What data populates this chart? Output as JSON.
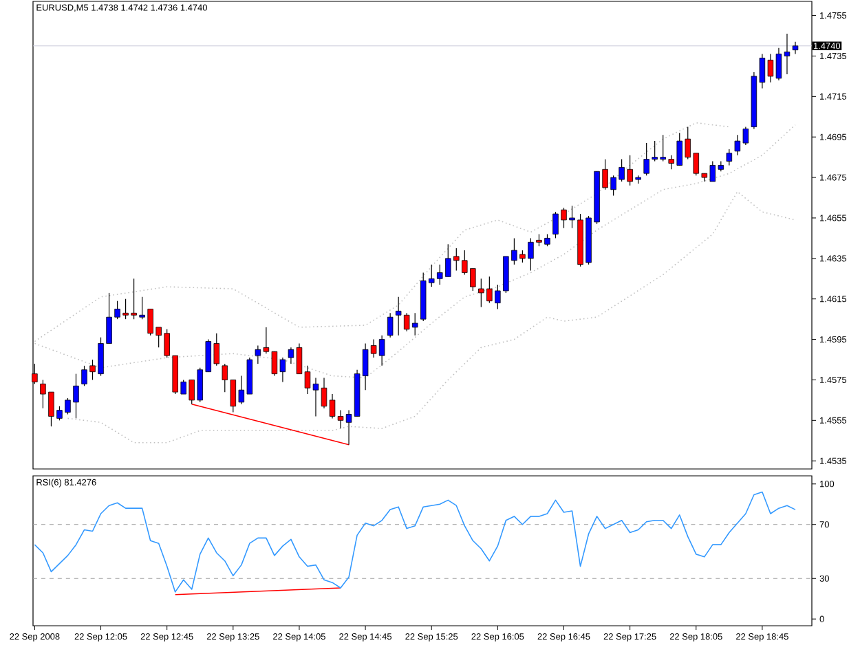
{
  "chart_data": [
    {
      "type": "candlestick",
      "title": "EURUSD,M5  1.4738 1.4742 1.4736 1.4740",
      "x": [
        "2008-09-22T11:25",
        "2008-09-22T11:30",
        "2008-09-22T11:35",
        "2008-09-22T11:40",
        "2008-09-22T11:45",
        "2008-09-22T11:50",
        "2008-09-22T11:55",
        "2008-09-22T12:00",
        "2008-09-22T12:05",
        "2008-09-22T12:10",
        "2008-09-22T12:15",
        "2008-09-22T12:20",
        "2008-09-22T12:25",
        "2008-09-22T12:30",
        "2008-09-22T12:35",
        "2008-09-22T12:40",
        "2008-09-22T12:45",
        "2008-09-22T12:50",
        "2008-09-22T12:55",
        "2008-09-22T13:00",
        "2008-09-22T13:05",
        "2008-09-22T13:10",
        "2008-09-22T13:15",
        "2008-09-22T13:20",
        "2008-09-22T13:25",
        "2008-09-22T13:30",
        "2008-09-22T13:35",
        "2008-09-22T13:40",
        "2008-09-22T13:45",
        "2008-09-22T13:50",
        "2008-09-22T13:55",
        "2008-09-22T14:00",
        "2008-09-22T14:05",
        "2008-09-22T14:10",
        "2008-09-22T14:15",
        "2008-09-22T14:20",
        "2008-09-22T14:25",
        "2008-09-22T14:30",
        "2008-09-22T14:35",
        "2008-09-22T14:40",
        "2008-09-22T14:45",
        "2008-09-22T14:50",
        "2008-09-22T14:55",
        "2008-09-22T15:00",
        "2008-09-22T15:05",
        "2008-09-22T15:10",
        "2008-09-22T15:15",
        "2008-09-22T15:20",
        "2008-09-22T15:25",
        "2008-09-22T15:30",
        "2008-09-22T15:35",
        "2008-09-22T15:40",
        "2008-09-22T15:45",
        "2008-09-22T15:50",
        "2008-09-22T15:55",
        "2008-09-22T16:00",
        "2008-09-22T16:05",
        "2008-09-22T16:10",
        "2008-09-22T16:15",
        "2008-09-22T16:20",
        "2008-09-22T16:25",
        "2008-09-22T16:30",
        "2008-09-22T16:35",
        "2008-09-22T16:40",
        "2008-09-22T16:45",
        "2008-09-22T16:50",
        "2008-09-22T16:55",
        "2008-09-22T17:00",
        "2008-09-22T17:05",
        "2008-09-22T17:10",
        "2008-09-22T17:15",
        "2008-09-22T17:20",
        "2008-09-22T17:25",
        "2008-09-22T17:30",
        "2008-09-22T17:35",
        "2008-09-22T17:40",
        "2008-09-22T17:45",
        "2008-09-22T17:50",
        "2008-09-22T17:55",
        "2008-09-22T18:00",
        "2008-09-22T18:05",
        "2008-09-22T18:10",
        "2008-09-22T18:15",
        "2008-09-22T18:20",
        "2008-09-22T18:25",
        "2008-09-22T18:30",
        "2008-09-22T18:35",
        "2008-09-22T18:40",
        "2008-09-22T18:45",
        "2008-09-22T18:50",
        "2008-09-22T18:55",
        "2008-09-22T19:00",
        "2008-09-22T19:05"
      ],
      "ohlc": [
        [
          1.4578,
          1.4583,
          1.4573,
          1.4574
        ],
        [
          1.4573,
          1.4575,
          1.4561,
          1.4568
        ],
        [
          1.4569,
          1.4569,
          1.4552,
          1.4557
        ],
        [
          1.4556,
          1.4562,
          1.4555,
          1.456
        ],
        [
          1.4559,
          1.4566,
          1.4558,
          1.4565
        ],
        [
          1.4564,
          1.4578,
          1.4556,
          1.4572
        ],
        [
          1.4573,
          1.4582,
          1.4572,
          1.458
        ],
        [
          1.4582,
          1.4585,
          1.4575,
          1.4579
        ],
        [
          1.4578,
          1.4596,
          1.4577,
          1.4593
        ],
        [
          1.4593,
          1.4618,
          1.4593,
          1.4606
        ],
        [
          1.4606,
          1.4614,
          1.4605,
          1.461
        ],
        [
          1.4608,
          1.4615,
          1.4605,
          1.4607
        ],
        [
          1.4608,
          1.4625,
          1.4605,
          1.4607
        ],
        [
          1.4606,
          1.4616,
          1.4605,
          1.4607
        ],
        [
          1.461,
          1.461,
          1.4597,
          1.4598
        ],
        [
          1.4601,
          1.4601,
          1.4591,
          1.4597
        ],
        [
          1.4598,
          1.46,
          1.4586,
          1.4587
        ],
        [
          1.4587,
          1.4587,
          1.4568,
          1.4569
        ],
        [
          1.4568,
          1.4575,
          1.4568,
          1.4574
        ],
        [
          1.4575,
          1.4575,
          1.4563,
          1.4565
        ],
        [
          1.4565,
          1.4581,
          1.4564,
          1.458
        ],
        [
          1.4579,
          1.4595,
          1.4579,
          1.4594
        ],
        [
          1.4593,
          1.4598,
          1.4582,
          1.4583
        ],
        [
          1.4582,
          1.4583,
          1.4569,
          1.4575
        ],
        [
          1.4575,
          1.4575,
          1.4559,
          1.4562
        ],
        [
          1.4564,
          1.4577,
          1.4563,
          1.457
        ],
        [
          1.4568,
          1.4586,
          1.4568,
          1.4585
        ],
        [
          1.4587,
          1.4592,
          1.4583,
          1.459
        ],
        [
          1.4591,
          1.4601,
          1.4588,
          1.4589
        ],
        [
          1.4589,
          1.4589,
          1.4577,
          1.4578
        ],
        [
          1.4579,
          1.4586,
          1.4574,
          1.4585
        ],
        [
          1.4586,
          1.4591,
          1.4583,
          1.459
        ],
        [
          1.4591,
          1.4593,
          1.4578,
          1.4578
        ],
        [
          1.4579,
          1.4582,
          1.4568,
          1.4571
        ],
        [
          1.457,
          1.4576,
          1.4557,
          1.4573
        ],
        [
          1.4571,
          1.4576,
          1.4561,
          1.4562
        ],
        [
          1.4565,
          1.4568,
          1.4556,
          1.4557
        ],
        [
          1.4557,
          1.456,
          1.4551,
          1.4555
        ],
        [
          1.4554,
          1.456,
          1.4543,
          1.4558
        ],
        [
          1.4557,
          1.458,
          1.4557,
          1.4578
        ],
        [
          1.4577,
          1.4593,
          1.457,
          1.459
        ],
        [
          1.4592,
          1.4595,
          1.4586,
          1.4588
        ],
        [
          1.4587,
          1.4597,
          1.4582,
          1.4595
        ],
        [
          1.4597,
          1.4608,
          1.4596,
          1.4606
        ],
        [
          1.4607,
          1.4616,
          1.4597,
          1.4609
        ],
        [
          1.4607,
          1.4608,
          1.4599,
          1.46
        ],
        [
          1.4601,
          1.4608,
          1.4597,
          1.4603
        ],
        [
          1.4605,
          1.4628,
          1.4604,
          1.4624
        ],
        [
          1.4623,
          1.4632,
          1.4621,
          1.4625
        ],
        [
          1.4625,
          1.4632,
          1.4622,
          1.4628
        ],
        [
          1.4626,
          1.4642,
          1.4626,
          1.4635
        ],
        [
          1.4636,
          1.464,
          1.4629,
          1.4634
        ],
        [
          1.4634,
          1.4639,
          1.4627,
          1.4628
        ],
        [
          1.463,
          1.463,
          1.4619,
          1.4621
        ],
        [
          1.462,
          1.4625,
          1.4611,
          1.4618
        ],
        [
          1.462,
          1.4626,
          1.4613,
          1.4614
        ],
        [
          1.4613,
          1.4622,
          1.461,
          1.4619
        ],
        [
          1.4619,
          1.4636,
          1.4618,
          1.4636
        ],
        [
          1.4634,
          1.4645,
          1.4632,
          1.4639
        ],
        [
          1.4637,
          1.4639,
          1.4633,
          1.4635
        ],
        [
          1.4635,
          1.4645,
          1.4629,
          1.4643
        ],
        [
          1.4644,
          1.4647,
          1.4641,
          1.4643
        ],
        [
          1.4642,
          1.4647,
          1.4641,
          1.4645
        ],
        [
          1.4647,
          1.4658,
          1.4645,
          1.4657
        ],
        [
          1.4659,
          1.466,
          1.465,
          1.4654
        ],
        [
          1.4654,
          1.4661,
          1.465,
          1.4655
        ],
        [
          1.4654,
          1.4657,
          1.4631,
          1.4632
        ],
        [
          1.4633,
          1.4656,
          1.4632,
          1.4655
        ],
        [
          1.4653,
          1.4678,
          1.4652,
          1.4678
        ],
        [
          1.4679,
          1.4684,
          1.4669,
          1.467
        ],
        [
          1.4669,
          1.4676,
          1.4666,
          1.4675
        ],
        [
          1.4674,
          1.4684,
          1.4673,
          1.468
        ],
        [
          1.4679,
          1.4686,
          1.4671,
          1.4673
        ],
        [
          1.4674,
          1.4676,
          1.4672,
          1.4675
        ],
        [
          1.4677,
          1.4692,
          1.4676,
          1.4684
        ],
        [
          1.4684,
          1.4693,
          1.4683,
          1.4685
        ],
        [
          1.4684,
          1.4696,
          1.4683,
          1.4685
        ],
        [
          1.4684,
          1.4686,
          1.4679,
          1.4682
        ],
        [
          1.4681,
          1.4697,
          1.4681,
          1.4693
        ],
        [
          1.4694,
          1.47,
          1.4684,
          1.4685
        ],
        [
          1.4687,
          1.4687,
          1.4676,
          1.4677
        ],
        [
          1.4677,
          1.4677,
          1.4673,
          1.4675
        ],
        [
          1.4673,
          1.4683,
          1.4673,
          1.4681
        ],
        [
          1.4679,
          1.4683,
          1.4678,
          1.4681
        ],
        [
          1.4683,
          1.4689,
          1.4681,
          1.4687
        ],
        [
          1.4688,
          1.4696,
          1.4686,
          1.4693
        ],
        [
          1.4692,
          1.47,
          1.4691,
          1.4699
        ],
        [
          1.47,
          1.4727,
          1.4699,
          1.4725
        ],
        [
          1.4722,
          1.4736,
          1.4719,
          1.4734
        ],
        [
          1.4733,
          1.4736,
          1.4722,
          1.4725
        ],
        [
          1.4724,
          1.4739,
          1.4723,
          1.4736
        ],
        [
          1.4735,
          1.4746,
          1.4726,
          1.4737
        ],
        [
          1.4738,
          1.4742,
          1.4736,
          1.474
        ]
      ],
      "colors": [
        "#ff0000",
        "#ff0000",
        "#ff0000",
        "#0000ff",
        "#0000ff",
        "#0000ff",
        "#0000ff",
        "#ff0000",
        "#0000ff",
        "#0000ff",
        "#0000ff",
        "#ff0000",
        "#ff0000",
        "#0000ff",
        "#ff0000",
        "#ff0000",
        "#ff0000",
        "#ff0000",
        "#0000ff",
        "#ff0000",
        "#0000ff",
        "#0000ff",
        "#ff0000",
        "#ff0000",
        "#ff0000",
        "#0000ff",
        "#0000ff",
        "#0000ff",
        "#ff0000",
        "#ff0000",
        "#0000ff",
        "#0000ff",
        "#ff0000",
        "#ff0000",
        "#0000ff",
        "#ff0000",
        "#ff0000",
        "#ff0000",
        "#0000ff",
        "#0000ff",
        "#0000ff",
        "#ff0000",
        "#0000ff",
        "#0000ff",
        "#0000ff",
        "#ff0000",
        "#0000ff",
        "#0000ff",
        "#0000ff",
        "#0000ff",
        "#0000ff",
        "#ff0000",
        "#ff0000",
        "#ff0000",
        "#ff0000",
        "#ff0000",
        "#0000ff",
        "#0000ff",
        "#0000ff",
        "#ff0000",
        "#0000ff",
        "#ff0000",
        "#0000ff",
        "#0000ff",
        "#ff0000",
        "#0000ff",
        "#ff0000",
        "#0000ff",
        "#0000ff",
        "#ff0000",
        "#0000ff",
        "#0000ff",
        "#ff0000",
        "#0000ff",
        "#0000ff",
        "#0000ff",
        "#0000ff",
        "#ff0000",
        "#0000ff",
        "#ff0000",
        "#ff0000",
        "#ff0000",
        "#0000ff",
        "#0000ff",
        "#0000ff",
        "#0000ff",
        "#0000ff",
        "#0000ff",
        "#0000ff",
        "#ff0000",
        "#0000ff",
        "#0000ff",
        "#0000ff"
      ],
      "series": [
        {
          "type": "line",
          "color": "#c0c0c0",
          "line_style": "dotted",
          "x": [
            "2008-09-22T11:25",
            "2008-09-22T12:05",
            "2008-09-22T12:45",
            "2008-09-22T13:25",
            "2008-09-22T14:05",
            "2008-09-22T14:45",
            "2008-09-22T15:05",
            "2008-09-22T15:25",
            "2008-09-22T15:45",
            "2008-09-22T16:05",
            "2008-09-22T16:25",
            "2008-09-22T16:45",
            "2008-09-22T17:05",
            "2008-09-22T17:25",
            "2008-09-22T17:45",
            "2008-09-22T18:05",
            "2008-09-22T18:25"
          ],
          "values": [
            1.4594,
            1.4616,
            1.4621,
            1.462,
            1.4601,
            1.4602,
            1.4612,
            1.4631,
            1.4649,
            1.4654,
            1.4648,
            1.4657,
            1.4667,
            1.4681,
            1.4694,
            1.4702,
            1.47
          ]
        },
        {
          "type": "line",
          "color": "#c0c0c0",
          "line_style": "dotted",
          "x": [
            "2008-09-22T11:25",
            "2008-09-22T12:05",
            "2008-09-22T12:45",
            "2008-09-22T13:25",
            "2008-09-22T13:55",
            "2008-09-22T14:25",
            "2008-09-22T14:45",
            "2008-09-22T15:05",
            "2008-09-22T15:25",
            "2008-09-22T15:45",
            "2008-09-22T16:05",
            "2008-09-22T16:25",
            "2008-09-22T16:45",
            "2008-09-22T17:05",
            "2008-09-22T17:25",
            "2008-09-22T17:45",
            "2008-09-22T18:05",
            "2008-09-22T18:25",
            "2008-09-22T18:45",
            "2008-09-22T19:05"
          ],
          "values": [
            1.4593,
            1.4581,
            1.4586,
            1.4588,
            1.4585,
            1.4577,
            1.4576,
            1.4589,
            1.4603,
            1.4616,
            1.4621,
            1.4628,
            1.4637,
            1.4649,
            1.4659,
            1.4669,
            1.4672,
            1.4677,
            1.4686,
            1.4701
          ]
        },
        {
          "type": "line",
          "color": "#c0c0c0",
          "line_style": "dotted",
          "x": [
            "2008-09-22T11:45",
            "2008-09-22T12:05",
            "2008-09-22T12:25",
            "2008-09-22T12:45",
            "2008-09-22T13:05",
            "2008-09-22T13:45",
            "2008-09-22T14:25",
            "2008-09-22T14:35",
            "2008-09-22T14:55",
            "2008-09-22T15:15",
            "2008-09-22T15:35",
            "2008-09-22T15:55",
            "2008-09-22T16:15",
            "2008-09-22T16:35",
            "2008-09-22T16:45",
            "2008-09-22T17:05",
            "2008-09-22T17:45",
            "2008-09-22T18:15",
            "2008-09-22T18:30",
            "2008-09-22T18:45",
            "2008-09-22T19:05"
          ],
          "values": [
            1.4556,
            1.4554,
            1.4544,
            1.4544,
            1.455,
            1.455,
            1.455,
            1.4552,
            1.4551,
            1.4557,
            1.4575,
            1.4591,
            1.4595,
            1.4606,
            1.4604,
            1.4606,
            1.4627,
            1.4647,
            1.4668,
            1.4658,
            1.4654
          ]
        },
        {
          "type": "line",
          "color": "#ff0000",
          "x": [
            "2008-09-22T13:00",
            "2008-09-22T14:35"
          ],
          "values": [
            1.4563,
            1.4543
          ]
        }
      ],
      "xlim": [
        "2008-09-22T11:24",
        "2008-09-22T19:15"
      ],
      "ylim": [
        1.4531,
        1.4762
      ],
      "yticks": [
        1.4535,
        1.4555,
        1.4575,
        1.4595,
        1.4615,
        1.4635,
        1.4655,
        1.4675,
        1.4695,
        1.4715,
        1.4735,
        1.4755
      ],
      "ref_lines": [
        {
          "axis": "y",
          "value": 1.474,
          "label": "1.4740",
          "color": "#c8c8d8"
        }
      ],
      "tick_labels": "y"
    },
    {
      "type": "line",
      "title": "RSI(6) 81.4276",
      "color": "#3399ff",
      "x": [
        "2008-09-22T11:25",
        "2008-09-22T11:30",
        "2008-09-22T11:35",
        "2008-09-22T11:40",
        "2008-09-22T11:45",
        "2008-09-22T11:50",
        "2008-09-22T11:55",
        "2008-09-22T12:00",
        "2008-09-22T12:05",
        "2008-09-22T12:10",
        "2008-09-22T12:15",
        "2008-09-22T12:20",
        "2008-09-22T12:25",
        "2008-09-22T12:30",
        "2008-09-22T12:35",
        "2008-09-22T12:40",
        "2008-09-22T12:45",
        "2008-09-22T12:50",
        "2008-09-22T12:55",
        "2008-09-22T13:00",
        "2008-09-22T13:05",
        "2008-09-22T13:10",
        "2008-09-22T13:15",
        "2008-09-22T13:20",
        "2008-09-22T13:25",
        "2008-09-22T13:30",
        "2008-09-22T13:35",
        "2008-09-22T13:40",
        "2008-09-22T13:45",
        "2008-09-22T13:50",
        "2008-09-22T13:55",
        "2008-09-22T14:00",
        "2008-09-22T14:05",
        "2008-09-22T14:10",
        "2008-09-22T14:15",
        "2008-09-22T14:20",
        "2008-09-22T14:25",
        "2008-09-22T14:30",
        "2008-09-22T14:35",
        "2008-09-22T14:40",
        "2008-09-22T14:45",
        "2008-09-22T14:50",
        "2008-09-22T14:55",
        "2008-09-22T15:00",
        "2008-09-22T15:05",
        "2008-09-22T15:10",
        "2008-09-22T15:15",
        "2008-09-22T15:20",
        "2008-09-22T15:25",
        "2008-09-22T15:30",
        "2008-09-22T15:35",
        "2008-09-22T15:40",
        "2008-09-22T15:45",
        "2008-09-22T15:50",
        "2008-09-22T15:55",
        "2008-09-22T16:00",
        "2008-09-22T16:05",
        "2008-09-22T16:10",
        "2008-09-22T16:15",
        "2008-09-22T16:20",
        "2008-09-22T16:25",
        "2008-09-22T16:30",
        "2008-09-22T16:35",
        "2008-09-22T16:40",
        "2008-09-22T16:45",
        "2008-09-22T16:50",
        "2008-09-22T16:55",
        "2008-09-22T17:00",
        "2008-09-22T17:05",
        "2008-09-22T17:10",
        "2008-09-22T17:15",
        "2008-09-22T17:20",
        "2008-09-22T17:25",
        "2008-09-22T17:30",
        "2008-09-22T17:35",
        "2008-09-22T17:40",
        "2008-09-22T17:45",
        "2008-09-22T17:50",
        "2008-09-22T17:55",
        "2008-09-22T18:00",
        "2008-09-22T18:05",
        "2008-09-22T18:10",
        "2008-09-22T18:15",
        "2008-09-22T18:20",
        "2008-09-22T18:25",
        "2008-09-22T18:30",
        "2008-09-22T18:35",
        "2008-09-22T18:40",
        "2008-09-22T18:45",
        "2008-09-22T18:50",
        "2008-09-22T18:55",
        "2008-09-22T19:00",
        "2008-09-22T19:05"
      ],
      "values": [
        55,
        49,
        35,
        41,
        47,
        55,
        66,
        65,
        78,
        84,
        86,
        82,
        82,
        82,
        58,
        56,
        39,
        20,
        29,
        22,
        48,
        60,
        49,
        43,
        32,
        40,
        56,
        60,
        60,
        47,
        54,
        59,
        46,
        39,
        40,
        29,
        27,
        23,
        31,
        62,
        71,
        69,
        73,
        81,
        83,
        67,
        69,
        83,
        84,
        85,
        88,
        84,
        69,
        58,
        52,
        43,
        54,
        73,
        76,
        70,
        76,
        76,
        78,
        88,
        79,
        80,
        39,
        63,
        76,
        67,
        70,
        73,
        64,
        66,
        72,
        73,
        73,
        67,
        77,
        61,
        48,
        46,
        55,
        55,
        64,
        71,
        78,
        92,
        94,
        78,
        82,
        84,
        81
      ],
      "series": [
        {
          "type": "line",
          "color": "#ff0000",
          "x": [
            "2008-09-22T12:50",
            "2008-09-22T14:30"
          ],
          "values": [
            18,
            23
          ]
        }
      ],
      "xlim": [
        "2008-09-22T11:24",
        "2008-09-22T19:15"
      ],
      "xticks": [
        {
          "value": "2008-09-22T11:25",
          "label": "22 Sep 2008"
        },
        {
          "value": "2008-09-22T12:05",
          "label": "22 Sep 12:05"
        },
        {
          "value": "2008-09-22T12:45",
          "label": "22 Sep 12:45"
        },
        {
          "value": "2008-09-22T13:25",
          "label": "22 Sep 13:25"
        },
        {
          "value": "2008-09-22T14:05",
          "label": "22 Sep 14:05"
        },
        {
          "value": "2008-09-22T14:45",
          "label": "22 Sep 14:45"
        },
        {
          "value": "2008-09-22T15:25",
          "label": "22 Sep 15:25"
        },
        {
          "value": "2008-09-22T16:05",
          "label": "22 Sep 16:05"
        },
        {
          "value": "2008-09-22T16:45",
          "label": "22 Sep 16:45"
        },
        {
          "value": "2008-09-22T17:25",
          "label": "22 Sep 17:25"
        },
        {
          "value": "2008-09-22T18:05",
          "label": "22 Sep 18:05"
        },
        {
          "value": "2008-09-22T18:45",
          "label": "22 Sep 18:45"
        }
      ],
      "ylim": [
        -5,
        106
      ],
      "yticks": [
        0,
        30,
        70,
        100
      ],
      "ref_lines": [
        {
          "axis": "y",
          "value": 30,
          "color": "#a0a0a0",
          "line_style": "dashed"
        },
        {
          "axis": "y",
          "value": 70,
          "color": "#a0a0a0",
          "line_style": "dashed"
        }
      ]
    }
  ]
}
